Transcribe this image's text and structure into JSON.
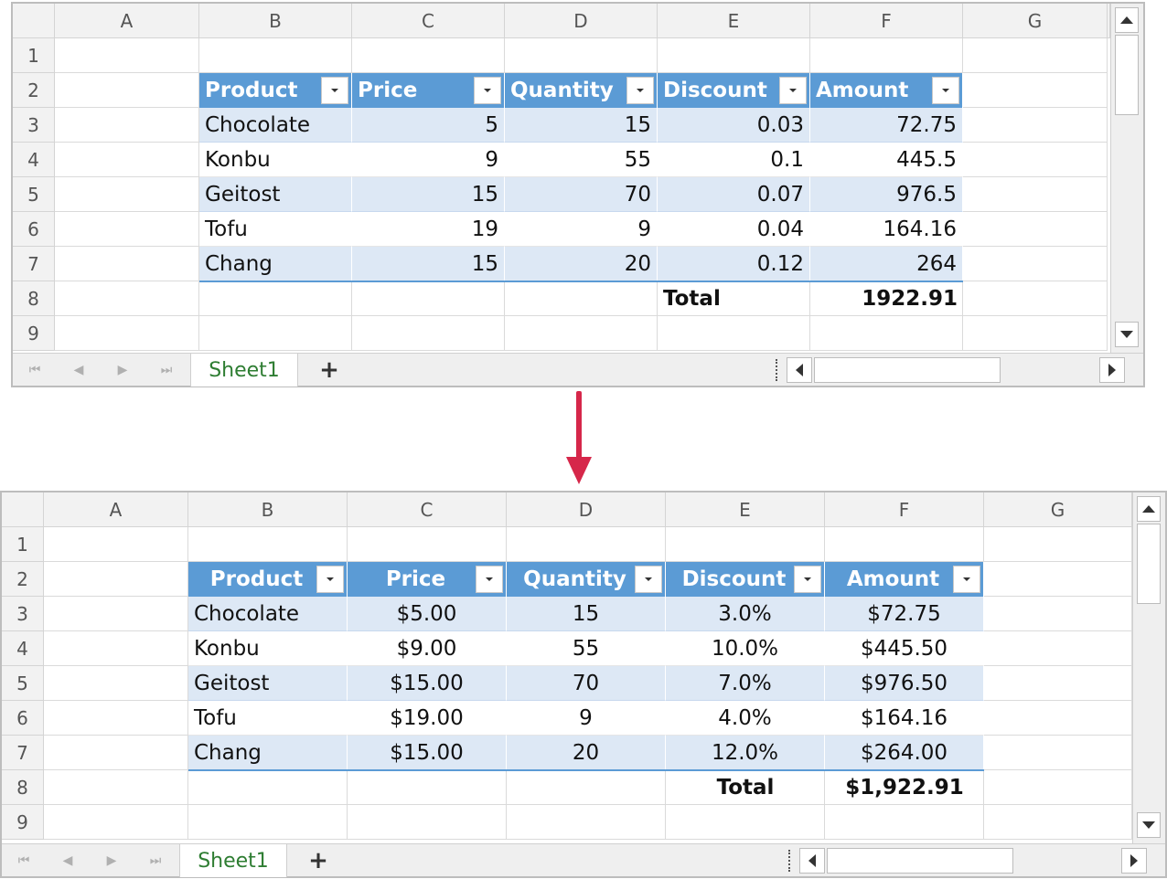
{
  "columns": [
    "A",
    "B",
    "C",
    "D",
    "E",
    "F",
    "G"
  ],
  "rows": [
    "1",
    "2",
    "3",
    "4",
    "5",
    "6",
    "7",
    "8",
    "9"
  ],
  "sheet_tab": "Sheet1",
  "add_sheet": "+",
  "before": {
    "headers": [
      "Product",
      "Price",
      "Quantity",
      "Discount",
      "Amount"
    ],
    "data": [
      [
        "Chocolate",
        "5",
        "15",
        "0.03",
        "72.75"
      ],
      [
        "Konbu",
        "9",
        "55",
        "0.1",
        "445.5"
      ],
      [
        "Geitost",
        "15",
        "70",
        "0.07",
        "976.5"
      ],
      [
        "Tofu",
        "19",
        "9",
        "0.04",
        "164.16"
      ],
      [
        "Chang",
        "15",
        "20",
        "0.12",
        "264"
      ]
    ],
    "total_label": "Total",
    "total_value": "1922.91"
  },
  "after": {
    "headers": [
      "Product",
      "Price",
      "Quantity",
      "Discount",
      "Amount"
    ],
    "data": [
      [
        "Chocolate",
        "$5.00",
        "15",
        "3.0%",
        "$72.75"
      ],
      [
        "Konbu",
        "$9.00",
        "55",
        "10.0%",
        "$445.50"
      ],
      [
        "Geitost",
        "$15.00",
        "70",
        "7.0%",
        "$976.50"
      ],
      [
        "Tofu",
        "$19.00",
        "9",
        "4.0%",
        "$164.16"
      ],
      [
        "Chang",
        "$15.00",
        "20",
        "12.0%",
        "$264.00"
      ]
    ],
    "total_label": "Total",
    "total_value": "$1,922.91"
  },
  "colors": {
    "header": "#5b9bd5",
    "band": "#dde8f5",
    "arrow": "#d6274a",
    "tab_text": "#2e7d32"
  }
}
